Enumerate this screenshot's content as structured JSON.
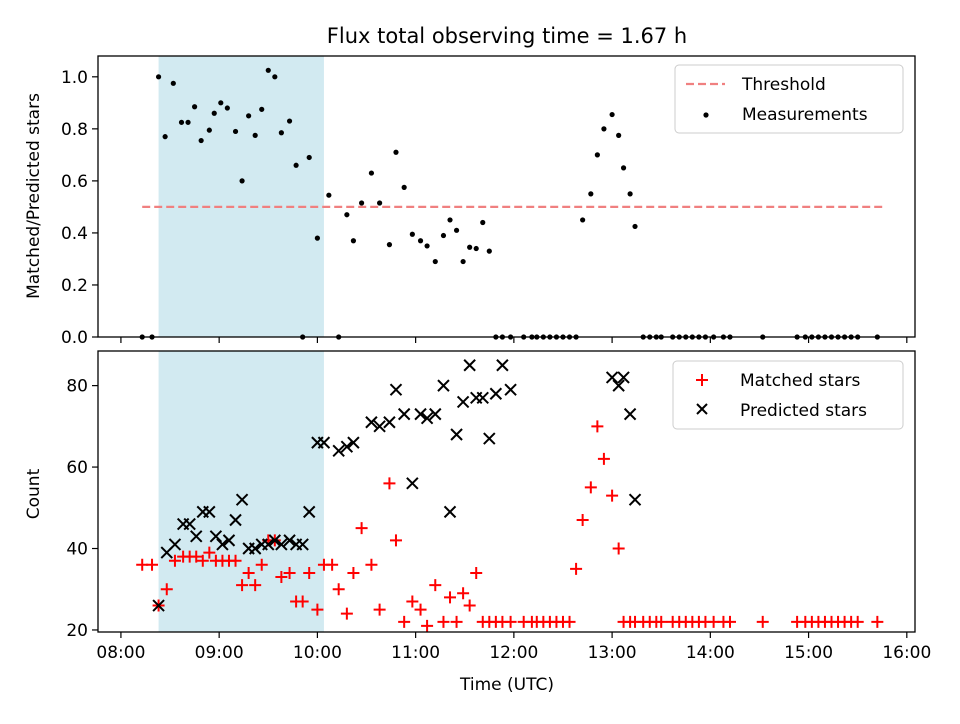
{
  "chart_data": [
    {
      "type": "scatter",
      "title": "Flux total observing time = 1.67 h",
      "xlabel": "",
      "ylabel": "Matched/Predicted stars",
      "ylim": [
        0,
        1.08
      ],
      "yticks": [
        0.0,
        0.2,
        0.4,
        0.6,
        0.8,
        1.0
      ],
      "ytick_labels": [
        "0.0",
        "0.2",
        "0.4",
        "0.6",
        "0.8",
        "1.0"
      ],
      "grid": false,
      "legend_position": "top-right",
      "shaded_span": {
        "x_start": "08:23",
        "x_end": "10:04",
        "color": "#add8e6"
      },
      "threshold": {
        "name": "Threshold",
        "y": 0.5,
        "x_start": "08:13",
        "x_end": "15:46",
        "color": "#f08080",
        "style": "dashed"
      },
      "series": [
        {
          "name": "Measurements",
          "marker": "dot",
          "color": "#000000",
          "x": [
            "08:13",
            "08:19",
            "08:23",
            "08:27",
            "08:32",
            "08:37",
            "08:41",
            "08:45",
            "08:49",
            "08:54",
            "08:57",
            "09:01",
            "09:05",
            "09:10",
            "09:14",
            "09:18",
            "09:22",
            "09:26",
            "09:30",
            "09:34",
            "09:38",
            "09:43",
            "09:47",
            "09:51",
            "09:55",
            "10:00",
            "10:07",
            "10:13",
            "10:18",
            "10:22",
            "10:27",
            "10:33",
            "10:38",
            "10:44",
            "10:48",
            "10:53",
            "10:58",
            "11:03",
            "11:07",
            "11:12",
            "11:17",
            "11:21",
            "11:25",
            "11:29",
            "11:33",
            "11:37",
            "11:41",
            "11:45",
            "11:49",
            "11:53",
            "11:58",
            "12:06",
            "12:11",
            "12:14",
            "12:18",
            "12:22",
            "12:26",
            "12:30",
            "12:34",
            "12:38",
            "12:42",
            "12:47",
            "12:51",
            "12:55",
            "13:00",
            "13:04",
            "13:07",
            "13:11",
            "13:14",
            "13:19",
            "13:23",
            "13:27",
            "13:30",
            "13:37",
            "13:41",
            "13:45",
            "13:49",
            "13:53",
            "13:57",
            "14:02",
            "14:08",
            "14:12",
            "14:32",
            "14:53",
            "14:58",
            "15:02",
            "15:06",
            "15:10",
            "15:14",
            "15:18",
            "15:22",
            "15:26",
            "15:30",
            "15:42"
          ],
          "y": [
            0.0,
            0.0,
            1.0,
            0.77,
            0.975,
            0.825,
            0.825,
            0.885,
            0.755,
            0.795,
            0.86,
            0.9,
            0.88,
            0.79,
            0.6,
            0.85,
            0.775,
            0.875,
            1.025,
            1.0,
            0.785,
            0.83,
            0.66,
            0.0,
            0.69,
            0.38,
            0.545,
            0.0,
            0.47,
            0.37,
            0.515,
            0.63,
            0.515,
            0.355,
            0.71,
            0.575,
            0.395,
            0.37,
            0.35,
            0.29,
            0.39,
            0.45,
            0.41,
            0.29,
            0.345,
            0.34,
            0.44,
            0.33,
            0.0,
            0.0,
            0.0,
            0.0,
            0.0,
            0.0,
            0.0,
            0.0,
            0.0,
            0.0,
            0.0,
            0.0,
            0.45,
            0.55,
            0.7,
            0.8,
            0.855,
            0.775,
            0.65,
            0.55,
            0.425,
            0.0,
            0.0,
            0.0,
            0.0,
            0.0,
            0.0,
            0.0,
            0.0,
            0.0,
            0.0,
            0.0,
            0.0,
            0.0,
            0.0,
            0.0,
            0.0,
            0.0,
            0.0,
            0.0,
            0.0,
            0.0,
            0.0,
            0.0,
            0.0,
            0.0
          ]
        }
      ]
    },
    {
      "type": "scatter",
      "title": "",
      "xlabel": "Time (UTC)",
      "ylabel": "Count",
      "xlim": [
        "07:46",
        "16:05"
      ],
      "ylim": [
        19.5,
        88.5
      ],
      "yticks": [
        20,
        40,
        60,
        80
      ],
      "ytick_labels": [
        "20",
        "40",
        "60",
        "80"
      ],
      "xticks": [
        "08:00",
        "09:00",
        "10:00",
        "11:00",
        "12:00",
        "13:00",
        "14:00",
        "15:00",
        "16:00"
      ],
      "xtick_labels": [
        "08:00",
        "09:00",
        "10:00",
        "11:00",
        "12:00",
        "13:00",
        "14:00",
        "15:00",
        "16:00"
      ],
      "grid": false,
      "legend_position": "top-right",
      "shaded_span": {
        "x_start": "08:23",
        "x_end": "10:04",
        "color": "#add8e6"
      },
      "series": [
        {
          "name": "Matched stars",
          "marker": "plus",
          "color": "#ff0000",
          "x": [
            "08:13",
            "08:19",
            "08:23",
            "08:28",
            "08:33",
            "08:38",
            "08:42",
            "08:46",
            "08:50",
            "08:54",
            "08:58",
            "09:02",
            "09:06",
            "09:10",
            "09:14",
            "09:18",
            "09:22",
            "09:26",
            "09:30",
            "09:34",
            "09:38",
            "09:43",
            "09:47",
            "09:51",
            "09:55",
            "10:00",
            "10:04",
            "10:09",
            "10:13",
            "10:18",
            "10:22",
            "10:27",
            "10:33",
            "10:38",
            "10:44",
            "10:48",
            "10:53",
            "10:58",
            "11:03",
            "11:07",
            "11:12",
            "11:17",
            "11:21",
            "11:25",
            "11:29",
            "11:33",
            "11:37",
            "11:41",
            "11:45",
            "11:49",
            "11:53",
            "11:58",
            "12:06",
            "12:11",
            "12:14",
            "12:18",
            "12:22",
            "12:26",
            "12:30",
            "12:34",
            "12:38",
            "12:42",
            "12:47",
            "12:51",
            "12:55",
            "13:00",
            "13:04",
            "13:07",
            "13:11",
            "13:14",
            "13:19",
            "13:23",
            "13:27",
            "13:30",
            "13:37",
            "13:41",
            "13:45",
            "13:49",
            "13:53",
            "13:57",
            "14:02",
            "14:08",
            "14:12",
            "14:32",
            "14:53",
            "14:58",
            "15:02",
            "15:06",
            "15:10",
            "15:14",
            "15:18",
            "15:22",
            "15:26",
            "15:30",
            "15:42"
          ],
          "y": [
            36,
            36,
            26,
            30,
            37,
            38,
            38,
            38,
            37,
            39,
            37,
            37,
            37,
            37,
            31,
            34,
            31,
            36,
            42,
            42,
            33,
            34,
            27,
            27,
            34,
            25,
            36,
            36,
            30,
            24,
            34,
            45,
            36,
            25,
            56,
            42,
            22,
            27,
            25,
            21,
            31,
            22,
            28,
            22,
            29,
            26,
            34,
            22,
            22,
            22,
            22,
            22,
            22,
            22,
            22,
            22,
            22,
            22,
            22,
            22,
            35,
            47,
            55,
            70,
            62,
            53,
            40,
            22,
            22,
            22,
            22,
            22,
            22,
            22,
            22,
            22,
            22,
            22,
            22,
            22,
            22,
            22,
            22,
            22,
            22,
            22,
            22,
            22,
            22,
            22,
            22,
            22,
            22,
            22,
            22
          ]
        },
        {
          "name": "Predicted stars",
          "marker": "x",
          "color": "#000000",
          "x": [
            "08:23",
            "08:28",
            "08:33",
            "08:38",
            "08:42",
            "08:46",
            "08:50",
            "08:54",
            "08:58",
            "09:02",
            "09:06",
            "09:10",
            "09:14",
            "09:18",
            "09:22",
            "09:26",
            "09:30",
            "09:34",
            "09:38",
            "09:43",
            "09:47",
            "09:51",
            "09:55",
            "10:00",
            "10:04",
            "10:13",
            "10:18",
            "10:22",
            "10:33",
            "10:38",
            "10:44",
            "10:48",
            "10:53",
            "10:58",
            "11:03",
            "11:07",
            "11:12",
            "11:17",
            "11:21",
            "11:25",
            "11:29",
            "11:33",
            "11:37",
            "11:41",
            "11:45",
            "11:49",
            "11:53",
            "11:58",
            "13:00",
            "13:04",
            "13:07",
            "13:11",
            "13:14",
            "13:19",
            "13:23",
            "13:27",
            "13:30"
          ],
          "y": [
            26,
            39,
            41,
            46,
            46,
            43,
            49,
            49,
            43,
            41,
            42,
            47,
            52,
            40,
            40,
            41,
            41,
            42,
            41,
            42,
            41,
            41,
            49,
            66,
            66,
            64,
            65,
            66,
            71,
            70,
            71,
            79,
            73,
            56,
            73,
            72,
            73,
            80,
            49,
            68,
            76,
            85,
            77,
            77,
            67,
            78,
            85,
            79,
            82,
            80,
            82,
            73,
            52,
            null,
            null,
            null,
            null
          ]
        }
      ]
    }
  ],
  "legend_top": {
    "items": [
      "Threshold",
      "Measurements"
    ]
  },
  "legend_bottom": {
    "items": [
      "Matched stars",
      "Predicted stars"
    ]
  }
}
